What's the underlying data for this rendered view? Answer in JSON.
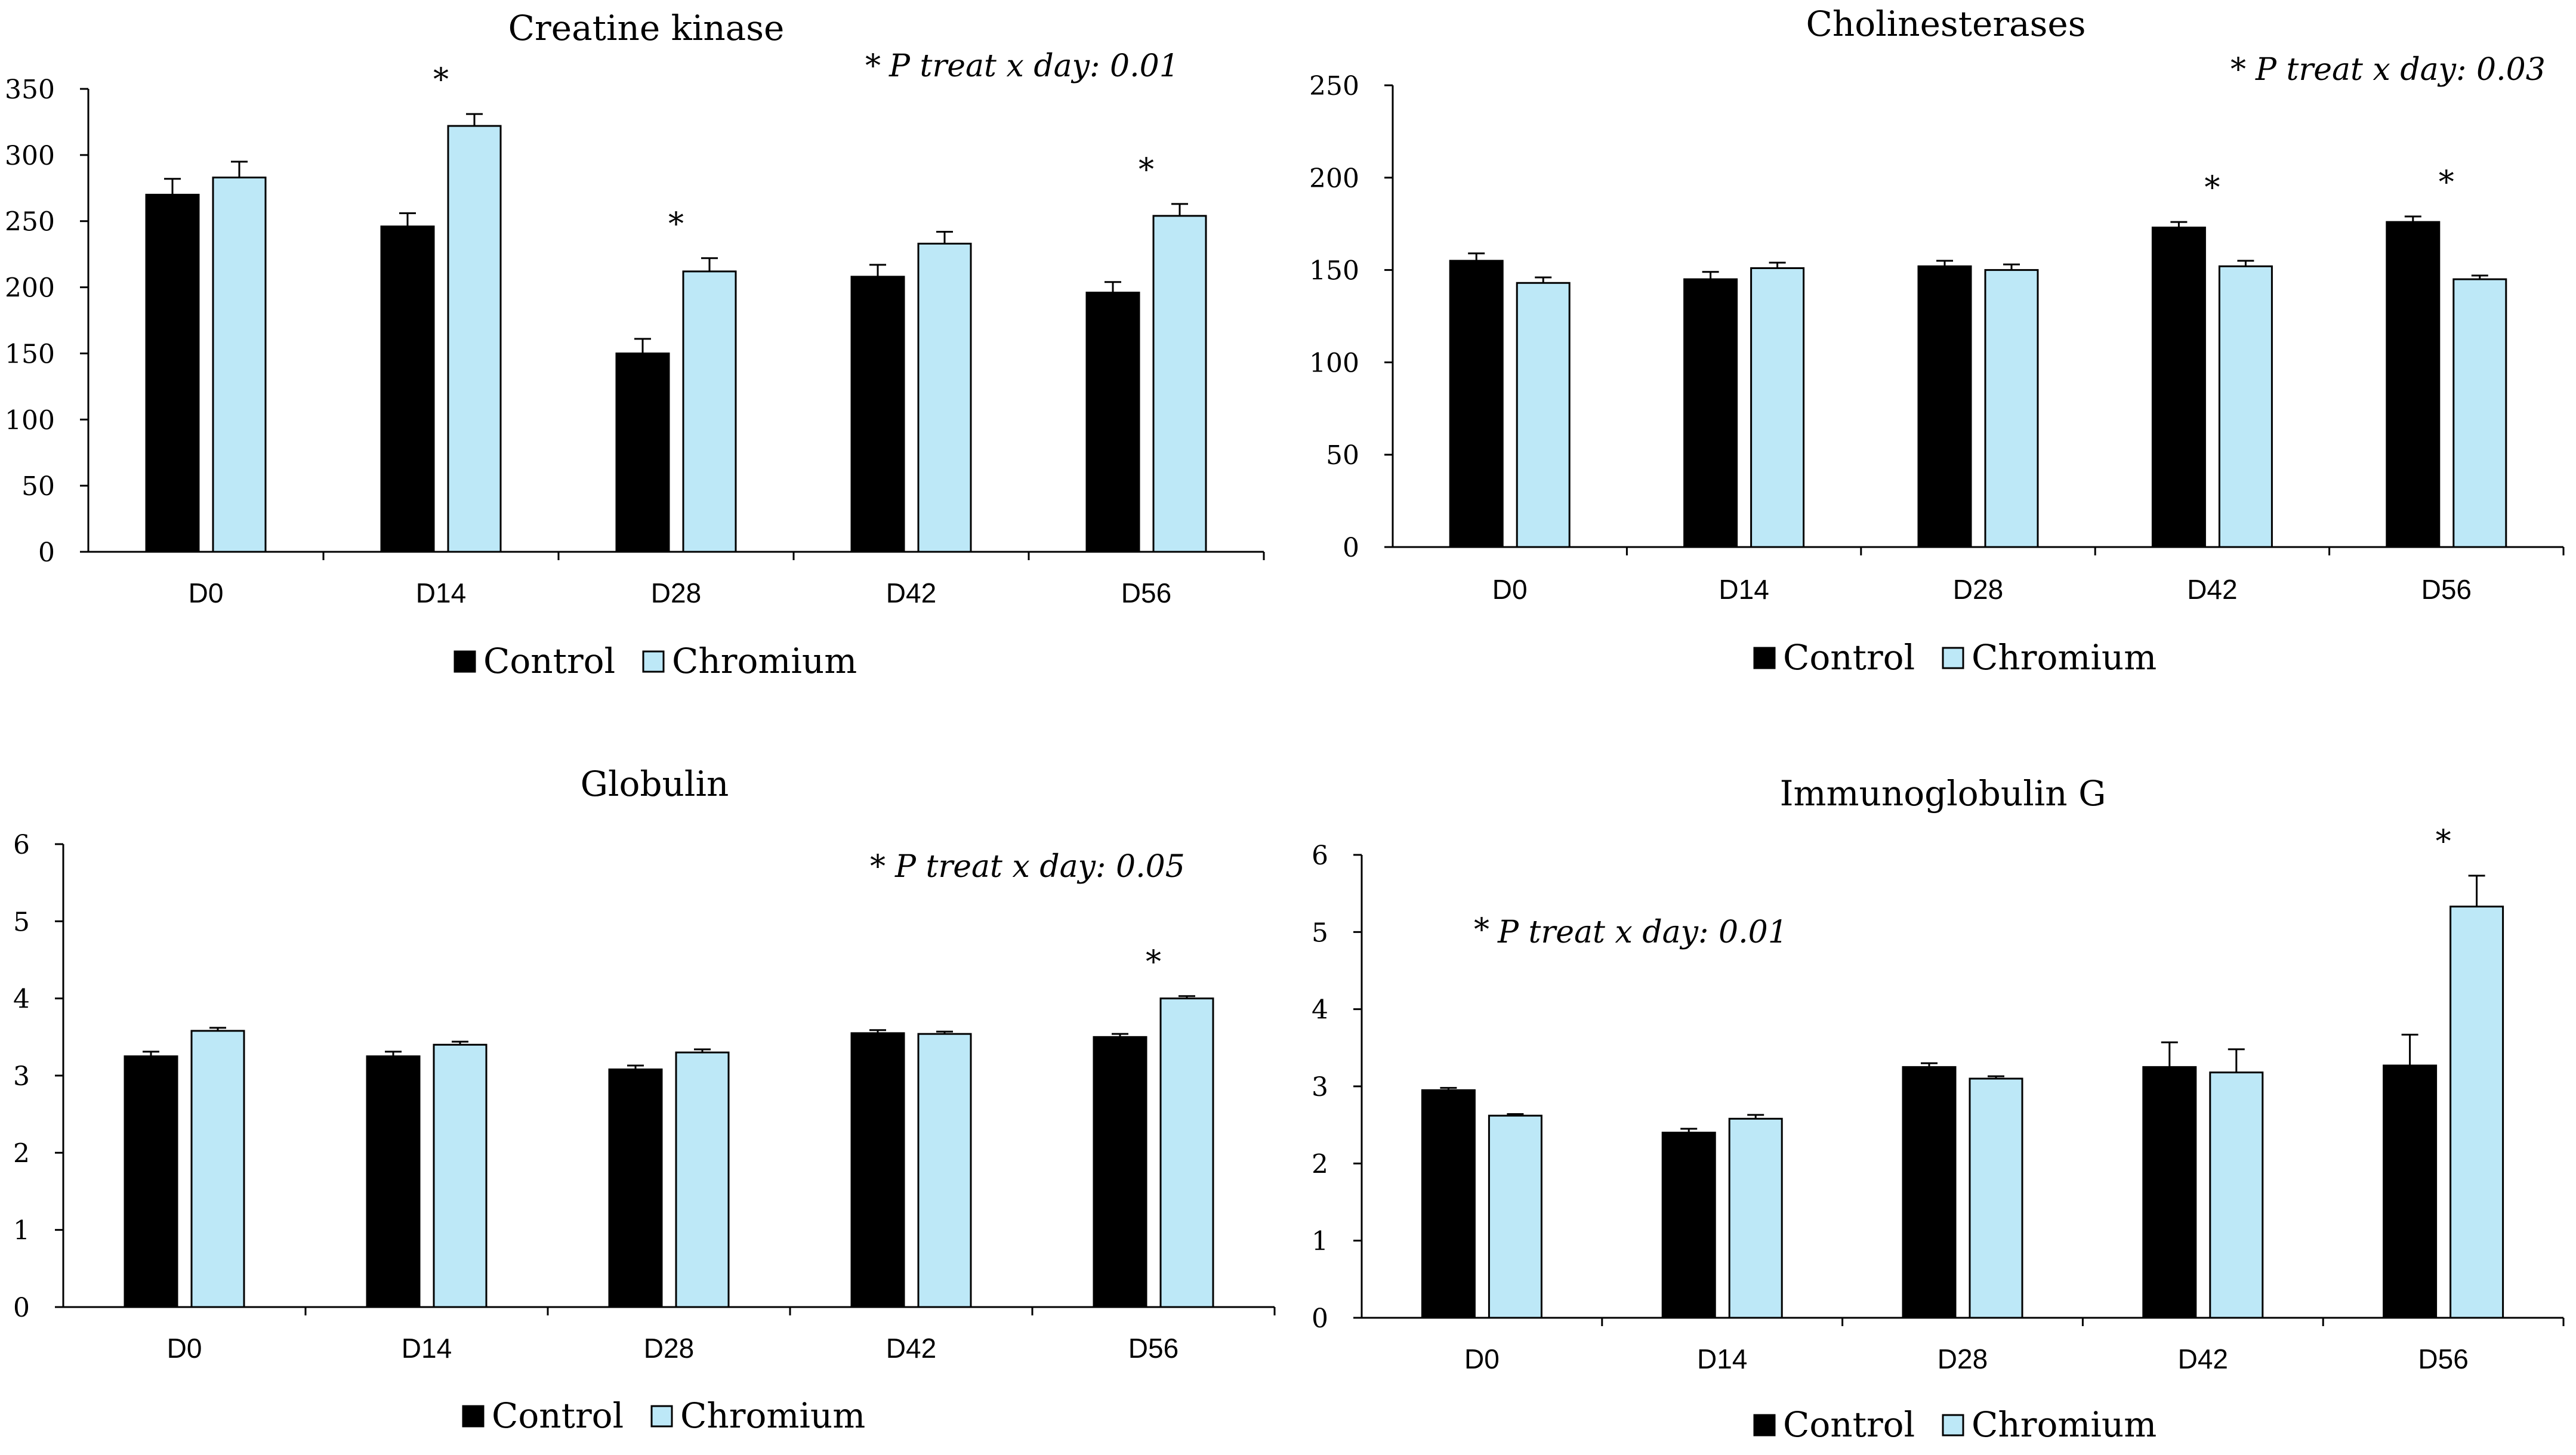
{
  "legend": {
    "control": "Control",
    "chromium": "Chromium"
  },
  "colors": {
    "control": "#000000",
    "chromium": "#bde8f7",
    "axis": "#000000",
    "errorbar": "#000000"
  },
  "chart_data": [
    {
      "type": "bar",
      "title": "Creatine kinase",
      "annotation": "P treat x day: 0.01",
      "annotation_star": "*",
      "categories": [
        "D0",
        "D14",
        "D28",
        "D42",
        "D56"
      ],
      "series": [
        {
          "name": "Control",
          "values": [
            270,
            246,
            150,
            208,
            196
          ],
          "errors": [
            12,
            10,
            11,
            9,
            8
          ]
        },
        {
          "name": "Chromium",
          "values": [
            283,
            322,
            212,
            233,
            254
          ],
          "errors": [
            12,
            9,
            10,
            9,
            9
          ]
        }
      ],
      "significant": [
        false,
        true,
        true,
        false,
        true
      ],
      "significance_marker": "*",
      "yticks": [
        0,
        50,
        100,
        150,
        200,
        250,
        300,
        350
      ],
      "ylim": [
        0,
        350
      ],
      "xlabel": "",
      "ylabel": "",
      "legend_position": "bottom-center"
    },
    {
      "type": "bar",
      "title": "Cholinesterases",
      "annotation": "P treat x day: 0.03",
      "annotation_star": "*",
      "categories": [
        "D0",
        "D14",
        "D28",
        "D42",
        "D56"
      ],
      "series": [
        {
          "name": "Control",
          "values": [
            155,
            145,
            152,
            173,
            176
          ],
          "errors": [
            4,
            4,
            3,
            3,
            3
          ]
        },
        {
          "name": "Chromium",
          "values": [
            143,
            151,
            150,
            152,
            145
          ],
          "errors": [
            3,
            3,
            3,
            3,
            2
          ]
        }
      ],
      "significant": [
        false,
        false,
        false,
        true,
        true
      ],
      "significance_marker": "*",
      "yticks": [
        0,
        50,
        100,
        150,
        200,
        250
      ],
      "ylim": [
        0,
        250
      ],
      "xlabel": "",
      "ylabel": "",
      "legend_position": "bottom-center"
    },
    {
      "type": "bar",
      "title": "Globulin",
      "annotation": "P treat x day: 0.05",
      "annotation_star": "*",
      "categories": [
        "D0",
        "D14",
        "D28",
        "D42",
        "D56"
      ],
      "series": [
        {
          "name": "Control",
          "values": [
            3.25,
            3.25,
            3.08,
            3.55,
            3.5
          ],
          "errors": [
            0.06,
            0.06,
            0.05,
            0.04,
            0.04
          ]
        },
        {
          "name": "Chromium",
          "values": [
            3.58,
            3.4,
            3.3,
            3.54,
            4.0
          ],
          "errors": [
            0.04,
            0.04,
            0.04,
            0.03,
            0.03
          ]
        }
      ],
      "significant": [
        false,
        false,
        false,
        false,
        true
      ],
      "significance_marker": "*",
      "yticks": [
        0,
        1,
        2,
        3,
        4,
        5,
        6
      ],
      "ylim": [
        0,
        6
      ],
      "xlabel": "",
      "ylabel": "",
      "legend_position": "bottom-center"
    },
    {
      "type": "bar",
      "title": "Immunoglobulin G",
      "annotation": "P treat x day: 0.01",
      "annotation_star": "*",
      "categories": [
        "D0",
        "D14",
        "D28",
        "D42",
        "D56"
      ],
      "series": [
        {
          "name": "Control",
          "values": [
            2.95,
            2.4,
            3.25,
            3.25,
            3.27
          ],
          "errors": [
            0.03,
            0.05,
            0.05,
            0.32,
            0.4
          ]
        },
        {
          "name": "Chromium",
          "values": [
            2.62,
            2.58,
            3.1,
            3.18,
            5.33
          ],
          "errors": [
            0.02,
            0.05,
            0.03,
            0.3,
            0.4
          ]
        }
      ],
      "significant": [
        false,
        false,
        false,
        false,
        true
      ],
      "significance_marker": "*",
      "yticks": [
        0,
        1,
        2,
        3,
        4,
        5,
        6
      ],
      "ylim": [
        0,
        6
      ],
      "xlabel": "",
      "ylabel": "",
      "legend_position": "bottom-center"
    }
  ]
}
